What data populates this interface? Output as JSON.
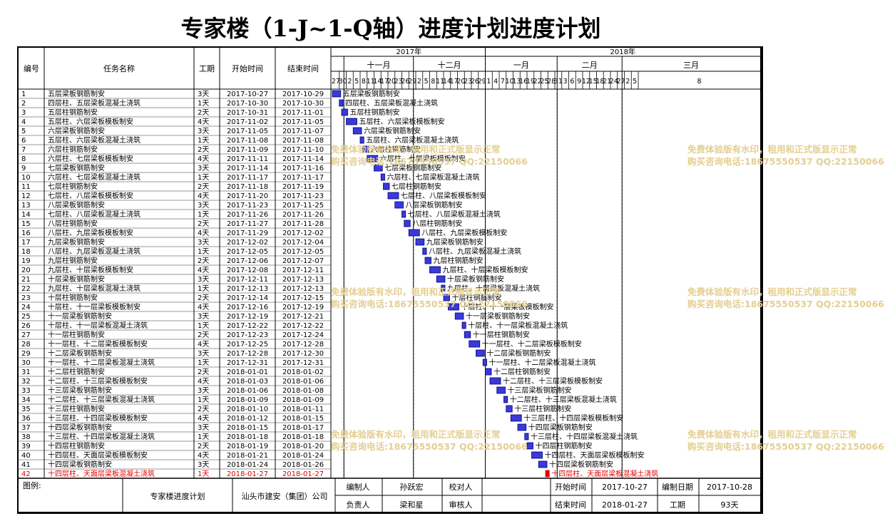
{
  "title": "专家楼（1-J~1-Q轴）进度计划进度计划",
  "headers": {
    "no": "编号",
    "name": "任务名称",
    "dur": "工期",
    "start": "开始时间",
    "end": "结束时间"
  },
  "years": [
    {
      "label": "2017年"
    },
    {
      "label": "2018年"
    }
  ],
  "months": [
    {
      "label": "十一月"
    },
    {
      "label": "十二月"
    },
    {
      "label": "一月"
    },
    {
      "label": "二月"
    },
    {
      "label": "三月"
    }
  ],
  "day_ticks": [
    "27",
    "30",
    "2",
    "5",
    "8",
    "11",
    "14",
    "17",
    "20",
    "23",
    "26",
    "29",
    "2",
    "5",
    "8",
    "11",
    "14",
    "17",
    "20",
    "23",
    "26",
    "29",
    "1",
    "4",
    "7",
    "10",
    "13",
    "16",
    "19",
    "22",
    "25",
    "28",
    "31",
    "3",
    "6",
    "9",
    "12",
    "15",
    "18",
    "21",
    "24",
    "27",
    "2",
    "5",
    "8"
  ],
  "tasks": [
    {
      "no": "1",
      "name": "五层梁板钢筋制安",
      "dur": "3天",
      "start": "2017-10-27",
      "end": "2017-10-29"
    },
    {
      "no": "2",
      "name": "四层柱、五层梁板混凝土浇筑",
      "dur": "1天",
      "start": "2017-10-30",
      "end": "2017-10-30"
    },
    {
      "no": "3",
      "name": "五层柱钢筋制安",
      "dur": "2天",
      "start": "2017-10-31",
      "end": "2017-11-01"
    },
    {
      "no": "4",
      "name": "五层柱、六层梁板模板制安",
      "dur": "4天",
      "start": "2017-11-02",
      "end": "2017-11-05"
    },
    {
      "no": "5",
      "name": "六层梁板钢筋制安",
      "dur": "3天",
      "start": "2017-11-05",
      "end": "2017-11-07"
    },
    {
      "no": "6",
      "name": "五层柱、六层梁板混凝土浇筑",
      "dur": "1天",
      "start": "2017-11-08",
      "end": "2017-11-08"
    },
    {
      "no": "7",
      "name": "六层柱钢筋制安",
      "dur": "2天",
      "start": "2017-11-09",
      "end": "2017-11-10"
    },
    {
      "no": "8",
      "name": "六层柱、七层梁板模板制安",
      "dur": "4天",
      "start": "2017-11-11",
      "end": "2017-11-14"
    },
    {
      "no": "9",
      "name": "七层梁板钢筋制安",
      "dur": "3天",
      "start": "2017-11-14",
      "end": "2017-11-16"
    },
    {
      "no": "10",
      "name": "六层柱、七层梁板混凝土浇筑",
      "dur": "1天",
      "start": "2017-11-17",
      "end": "2017-11-17"
    },
    {
      "no": "11",
      "name": "七层柱钢筋制安",
      "dur": "2天",
      "start": "2017-11-18",
      "end": "2017-11-19"
    },
    {
      "no": "12",
      "name": "七层柱、八层梁板模板制安",
      "dur": "4天",
      "start": "2017-11-20",
      "end": "2017-11-23"
    },
    {
      "no": "13",
      "name": "八层梁板钢筋制安",
      "dur": "3天",
      "start": "2017-11-23",
      "end": "2017-11-25"
    },
    {
      "no": "14",
      "name": "七层柱、八层梁板混凝土浇筑",
      "dur": "1天",
      "start": "2017-11-26",
      "end": "2017-11-26"
    },
    {
      "no": "15",
      "name": "八层柱钢筋制安",
      "dur": "2天",
      "start": "2017-11-27",
      "end": "2017-11-28"
    },
    {
      "no": "16",
      "name": "八层柱、九层梁板模板制安",
      "dur": "4天",
      "start": "2017-11-29",
      "end": "2017-12-02"
    },
    {
      "no": "17",
      "name": "九层梁板钢筋制安",
      "dur": "3天",
      "start": "2017-12-02",
      "end": "2017-12-04"
    },
    {
      "no": "18",
      "name": "八层柱、九层梁板混凝土浇筑",
      "dur": "1天",
      "start": "2017-12-05",
      "end": "2017-12-05"
    },
    {
      "no": "19",
      "name": "九层柱钢筋制安",
      "dur": "2天",
      "start": "2017-12-06",
      "end": "2017-12-07"
    },
    {
      "no": "20",
      "name": "九层柱、十层梁板模板制安",
      "dur": "4天",
      "start": "2017-12-08",
      "end": "2017-12-11"
    },
    {
      "no": "21",
      "name": "十层梁板钢筋制安",
      "dur": "3天",
      "start": "2017-12-11",
      "end": "2017-12-13"
    },
    {
      "no": "22",
      "name": "九层柱、十层梁板混凝土浇筑",
      "dur": "1天",
      "start": "2017-12-13",
      "end": "2017-12-13"
    },
    {
      "no": "23",
      "name": "十层柱钢筋制安",
      "dur": "2天",
      "start": "2017-12-14",
      "end": "2017-12-15"
    },
    {
      "no": "24",
      "name": "十层柱、十一层梁板模板制安",
      "dur": "4天",
      "start": "2017-12-16",
      "end": "2017-12-19"
    },
    {
      "no": "25",
      "name": "十一层梁板钢筋制安",
      "dur": "3天",
      "start": "2017-12-19",
      "end": "2017-12-21"
    },
    {
      "no": "26",
      "name": "十层柱、十一层梁板混凝土浇筑",
      "dur": "1天",
      "start": "2017-12-22",
      "end": "2017-12-22"
    },
    {
      "no": "27",
      "name": "十一层柱钢筋制安",
      "dur": "2天",
      "start": "2017-12-23",
      "end": "2017-12-24"
    },
    {
      "no": "28",
      "name": "十一层柱、十二层梁板模板制安",
      "dur": "4天",
      "start": "2017-12-25",
      "end": "2017-12-28"
    },
    {
      "no": "29",
      "name": "十二层梁板钢筋制安",
      "dur": "3天",
      "start": "2017-12-28",
      "end": "2017-12-30"
    },
    {
      "no": "30",
      "name": "十一层柱、十二层梁板混凝土浇筑",
      "dur": "1天",
      "start": "2017-12-31",
      "end": "2017-12-31"
    },
    {
      "no": "31",
      "name": "十二层柱钢筋制安",
      "dur": "2天",
      "start": "2018-01-01",
      "end": "2018-01-02"
    },
    {
      "no": "32",
      "name": "十二层柱、十三层梁板模板制安",
      "dur": "4天",
      "start": "2018-01-03",
      "end": "2018-01-06"
    },
    {
      "no": "33",
      "name": "十三层梁板钢筋制安",
      "dur": "3天",
      "start": "2018-01-06",
      "end": "2018-01-08"
    },
    {
      "no": "34",
      "name": "十二层柱、十三层梁板混凝土浇筑",
      "dur": "1天",
      "start": "2018-01-09",
      "end": "2018-01-09"
    },
    {
      "no": "35",
      "name": "十三层柱钢筋制安",
      "dur": "2天",
      "start": "2018-01-10",
      "end": "2018-01-11"
    },
    {
      "no": "36",
      "name": "十三层柱、十四层梁板模板制安",
      "dur": "4天",
      "start": "2018-01-12",
      "end": "2018-01-15"
    },
    {
      "no": "37",
      "name": "十四层梁板钢筋制安",
      "dur": "3天",
      "start": "2018-01-15",
      "end": "2018-01-17"
    },
    {
      "no": "38",
      "name": "十三层柱、十四层梁板混凝土浇筑",
      "dur": "1天",
      "start": "2018-01-18",
      "end": "2018-01-18"
    },
    {
      "no": "39",
      "name": "十四层柱钢筋制安",
      "dur": "2天",
      "start": "2018-01-19",
      "end": "2018-01-20"
    },
    {
      "no": "40",
      "name": "十四层柱、天面层梁板模板制安",
      "dur": "4天",
      "start": "2018-01-21",
      "end": "2018-01-24"
    },
    {
      "no": "41",
      "name": "十四层梁板钢筋制安",
      "dur": "3天",
      "start": "2018-01-24",
      "end": "2018-01-26"
    },
    {
      "no": "42",
      "name": "十四层柱、天面层梁板混凝土浇筑",
      "dur": "1天",
      "start": "2018-01-27",
      "end": "2018-01-27",
      "highlight": true
    }
  ],
  "footer": {
    "legend_label": "图例:",
    "project": "专家楼进度计划",
    "company": "汕头市建安（集团）公司",
    "compiler_label": "编制人",
    "compiler": "孙跃宏",
    "checker_label": "校对人",
    "checker": "",
    "manager_label": "负责人",
    "manager": "梁和星",
    "reviewer_label": "审核人",
    "reviewer": "",
    "start_label": "开始时间",
    "start": "2017-10-27",
    "date_label": "编制日期",
    "date": "2017-10-28",
    "end_label": "结束时间",
    "end": "2018-01-27",
    "dur_label": "工期",
    "dur": "93天"
  },
  "watermark": {
    "line1": "免费体验版有水印，租用和正式版显示正常",
    "line2": "购买咨询电话:18675550537 QQ:22150066"
  },
  "colors": {
    "bar_fill": "#3a3ad8",
    "bar_border": "#000080",
    "highlight": "#e00000",
    "watermark": "#e3cf91"
  }
}
